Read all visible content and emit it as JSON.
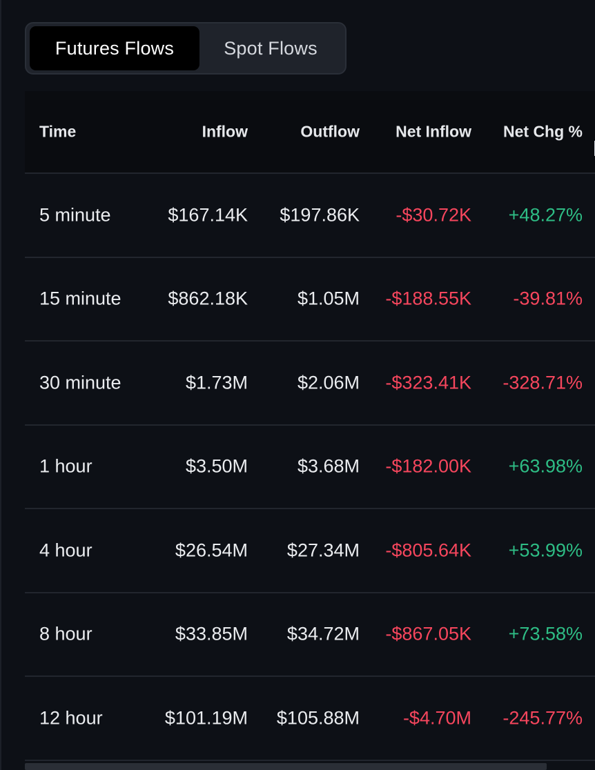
{
  "tabs": [
    {
      "label": "Futures Flows",
      "active": true
    },
    {
      "label": "Spot Flows",
      "active": false
    }
  ],
  "table": {
    "headers": {
      "time": "Time",
      "inflow": "Inflow",
      "outflow": "Outflow",
      "net_inflow": "Net Inflow",
      "net_chg": "Net Chg %"
    },
    "rows": [
      {
        "time": "5 minute",
        "inflow": "$167.14K",
        "outflow": "$197.86K",
        "net_inflow": "-$30.72K",
        "net_chg": "+48.27%"
      },
      {
        "time": "15 minute",
        "inflow": "$862.18K",
        "outflow": "$1.05M",
        "net_inflow": "-$188.55K",
        "net_chg": "-39.81%"
      },
      {
        "time": "30 minute",
        "inflow": "$1.73M",
        "outflow": "$2.06M",
        "net_inflow": "-$323.41K",
        "net_chg": "-328.71%"
      },
      {
        "time": "1 hour",
        "inflow": "$3.50M",
        "outflow": "$3.68M",
        "net_inflow": "-$182.00K",
        "net_chg": "+63.98%"
      },
      {
        "time": "4 hour",
        "inflow": "$26.54M",
        "outflow": "$27.34M",
        "net_inflow": "-$805.64K",
        "net_chg": "+53.99%"
      },
      {
        "time": "8 hour",
        "inflow": "$33.85M",
        "outflow": "$34.72M",
        "net_inflow": "-$867.05K",
        "net_chg": "+73.58%"
      },
      {
        "time": "12 hour",
        "inflow": "$101.19M",
        "outflow": "$105.88M",
        "net_inflow": "-$4.70M",
        "net_chg": "-245.77%"
      }
    ]
  },
  "colors": {
    "background": "#0d1016",
    "header_background": "#0a0c10",
    "negative": "#f6465d",
    "positive": "#2ebd85",
    "text": "#eaecef"
  }
}
